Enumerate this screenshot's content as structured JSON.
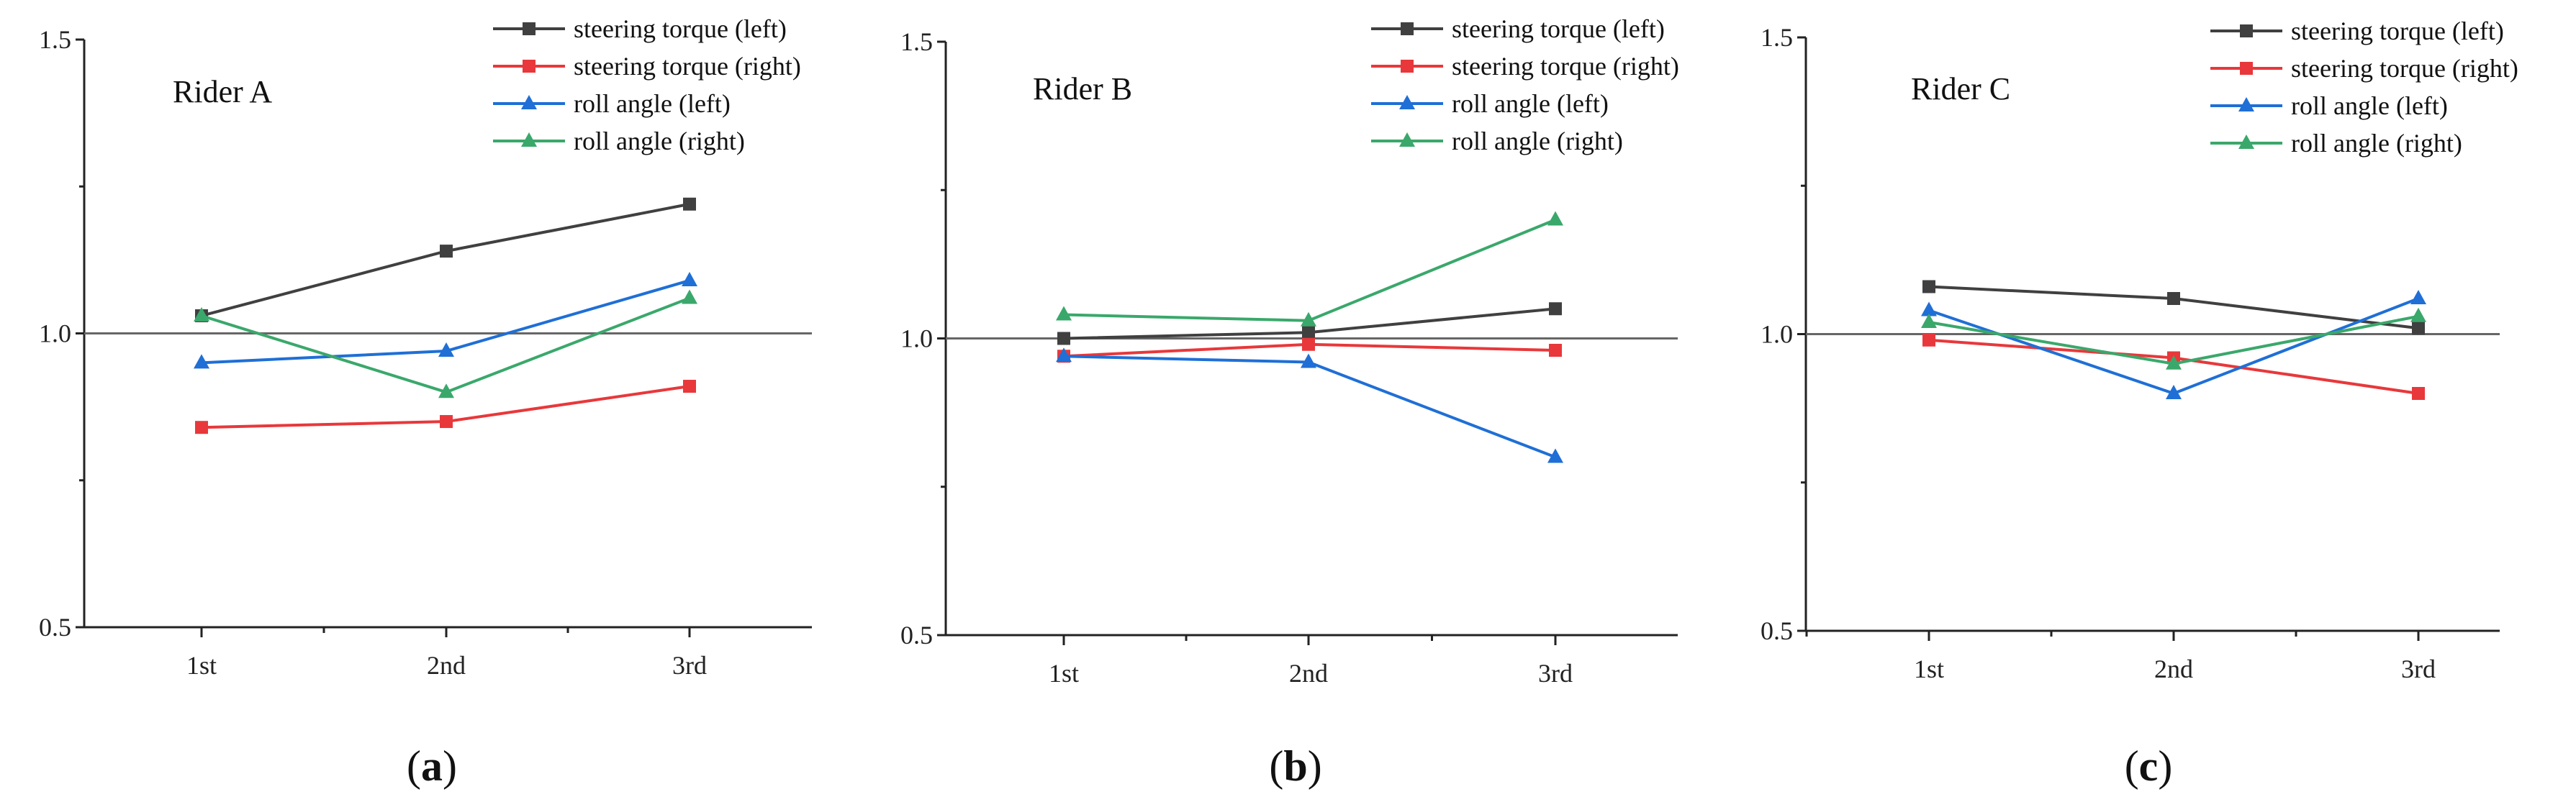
{
  "figure": {
    "panel_labels": [
      "(a)",
      "(b)",
      "(c)"
    ],
    "panel_label_parts": [
      {
        "open": "(",
        "letter": "a",
        "close": ")"
      },
      {
        "open": "(",
        "letter": "b",
        "close": ")"
      },
      {
        "open": "(",
        "letter": "c",
        "close": ")"
      }
    ]
  },
  "colors": {
    "steering_left": "#404040",
    "steering_right": "#e8383b",
    "roll_left": "#1f6fd6",
    "roll_right": "#3aa86b",
    "reference_line": "#6b6b6b"
  },
  "chart_data": [
    {
      "type": "line",
      "title": "Rider A",
      "categories": [
        "1st",
        "2nd",
        "3rd"
      ],
      "ylim": [
        0.5,
        1.5
      ],
      "yticks": [
        "0.5",
        "1.0",
        "1.5"
      ],
      "reference_y": 1.0,
      "legend_position": "top-right",
      "series": [
        {
          "name": "steering torque (left)",
          "marker": "square",
          "color": "#404040",
          "values": [
            1.03,
            1.14,
            1.22
          ]
        },
        {
          "name": "steering torque (right)",
          "marker": "square",
          "color": "#e8383b",
          "values": [
            0.84,
            0.85,
            0.91
          ]
        },
        {
          "name": "roll angle (left)",
          "marker": "triangle",
          "color": "#1f6fd6",
          "values": [
            0.95,
            0.97,
            1.09
          ]
        },
        {
          "name": "roll angle (right)",
          "marker": "triangle",
          "color": "#3aa86b",
          "values": [
            1.03,
            0.9,
            1.06
          ]
        }
      ]
    },
    {
      "type": "line",
      "title": "Rider B",
      "categories": [
        "1st",
        "2nd",
        "3rd"
      ],
      "ylim": [
        0.5,
        1.5
      ],
      "yticks": [
        "0.5",
        "1.0",
        "1.5"
      ],
      "reference_y": 1.0,
      "legend_position": "top-right",
      "series": [
        {
          "name": "steering torque (left)",
          "marker": "square",
          "color": "#404040",
          "values": [
            1.0,
            1.01,
            1.05
          ]
        },
        {
          "name": "steering torque (right)",
          "marker": "square",
          "color": "#e8383b",
          "values": [
            0.97,
            0.99,
            0.98
          ]
        },
        {
          "name": "roll angle (left)",
          "marker": "triangle",
          "color": "#1f6fd6",
          "values": [
            0.97,
            0.96,
            0.8
          ]
        },
        {
          "name": "roll angle (right)",
          "marker": "triangle",
          "color": "#3aa86b",
          "values": [
            1.04,
            1.03,
            1.2
          ]
        }
      ]
    },
    {
      "type": "line",
      "title": "Rider C",
      "categories": [
        "1st",
        "2nd",
        "3rd"
      ],
      "ylim": [
        0.5,
        1.5
      ],
      "yticks": [
        "0.5",
        "1.0",
        "1.5"
      ],
      "reference_y": 1.0,
      "legend_position": "top-right",
      "series": [
        {
          "name": "steering torque (left)",
          "marker": "square",
          "color": "#404040",
          "values": [
            1.08,
            1.06,
            1.01
          ]
        },
        {
          "name": "steering torque (right)",
          "marker": "square",
          "color": "#e8383b",
          "values": [
            0.99,
            0.96,
            0.9
          ]
        },
        {
          "name": "roll angle (left)",
          "marker": "triangle",
          "color": "#1f6fd6",
          "values": [
            1.04,
            0.9,
            1.06
          ]
        },
        {
          "name": "roll angle (right)",
          "marker": "triangle",
          "color": "#3aa86b",
          "values": [
            1.02,
            0.95,
            1.03
          ]
        }
      ]
    }
  ]
}
